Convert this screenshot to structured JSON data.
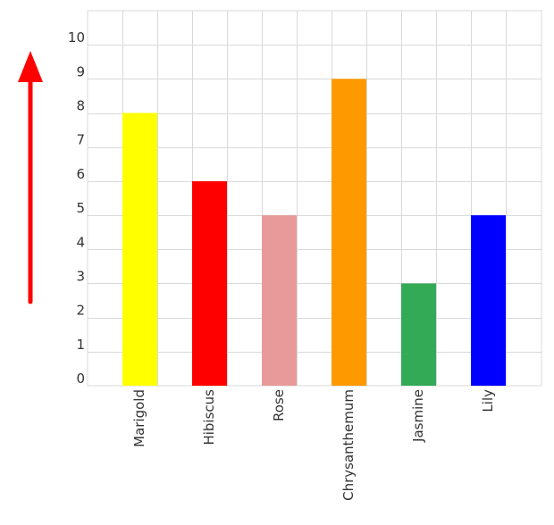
{
  "chart_data": {
    "type": "bar",
    "categories": [
      "Marigold",
      "Hibiscus",
      "Rose",
      "Chrysanthemum",
      "Jasmine",
      "Lily"
    ],
    "values": [
      8,
      6,
      5,
      9,
      3,
      5
    ],
    "colors": [
      "#ffff00",
      "#ff0000",
      "#e89a9a",
      "#ff9900",
      "#33aa55",
      "#0000ff"
    ],
    "ylim": [
      0,
      11
    ],
    "yticks": [
      0,
      1,
      2,
      3,
      4,
      5,
      6,
      7,
      8,
      9,
      10
    ],
    "grid": true,
    "title": "",
    "xlabel": "",
    "ylabel": ""
  },
  "decorations": {
    "arrow_color": "#ff0000",
    "arrow_direction": "up",
    "grid_color": "#d9d9d9"
  }
}
